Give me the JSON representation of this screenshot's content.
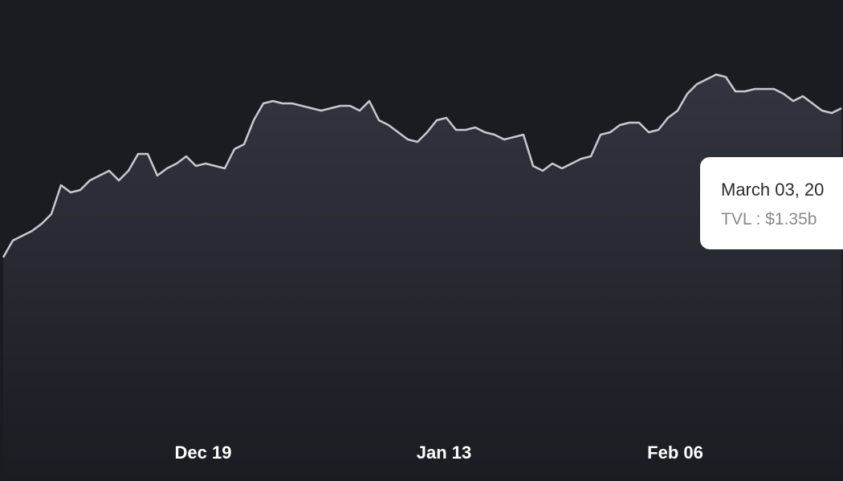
{
  "chart_data": {
    "type": "area",
    "categories": [
      null,
      null,
      null,
      null,
      null,
      null,
      null,
      null,
      null,
      null,
      null,
      null,
      null,
      null,
      null,
      null,
      null,
      null,
      null,
      null,
      null,
      "Dec 19",
      null,
      null,
      null,
      null,
      null,
      null,
      null,
      null,
      null,
      null,
      null,
      null,
      null,
      null,
      null,
      null,
      null,
      null,
      null,
      null,
      null,
      null,
      null,
      null,
      "Jan 13",
      null,
      null,
      null,
      null,
      null,
      null,
      null,
      null,
      null,
      null,
      null,
      null,
      null,
      null,
      null,
      null,
      null,
      null,
      null,
      null,
      null,
      null,
      null,
      "Feb 06",
      null,
      null,
      null,
      null,
      null,
      null,
      null,
      null,
      null,
      null,
      null,
      null,
      null,
      null,
      null,
      null,
      null
    ],
    "values": [
      0.73,
      0.8,
      0.82,
      0.84,
      0.87,
      0.91,
      1.03,
      1.0,
      1.01,
      1.05,
      1.07,
      1.09,
      1.05,
      1.09,
      1.16,
      1.16,
      1.07,
      1.1,
      1.12,
      1.15,
      1.11,
      1.12,
      1.11,
      1.1,
      1.18,
      1.2,
      1.3,
      1.37,
      1.38,
      1.37,
      1.37,
      1.36,
      1.35,
      1.34,
      1.35,
      1.36,
      1.36,
      1.34,
      1.38,
      1.3,
      1.28,
      1.25,
      1.22,
      1.21,
      1.25,
      1.3,
      1.31,
      1.26,
      1.26,
      1.27,
      1.25,
      1.24,
      1.22,
      1.23,
      1.24,
      1.11,
      1.09,
      1.12,
      1.1,
      1.12,
      1.14,
      1.15,
      1.24,
      1.25,
      1.28,
      1.29,
      1.29,
      1.25,
      1.26,
      1.31,
      1.34,
      1.41,
      1.45,
      1.47,
      1.49,
      1.48,
      1.42,
      1.42,
      1.43,
      1.43,
      1.43,
      1.41,
      1.38,
      1.4,
      1.37,
      1.34,
      1.33,
      1.35
    ],
    "color": "#c9cad0",
    "ylim": [
      0,
      1.8
    ],
    "tooltip": {
      "title": "March 03, 20",
      "label": "TVL : $1.35b"
    }
  }
}
